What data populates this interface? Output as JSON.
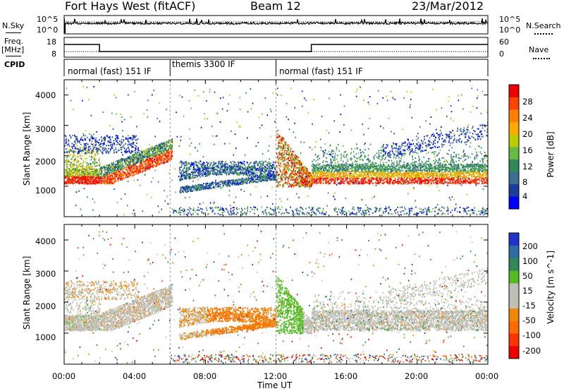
{
  "header": {
    "station": "Fort Hays West (fitACF)",
    "beam": "Beam 12",
    "date": "23/Mar/2012"
  },
  "left_labels": {
    "nsky": "N.Sky",
    "freq": "Freq.",
    "freq_unit": "[MHz]",
    "cpid": "CPID"
  },
  "right_labels": {
    "nsearch": "N.Search",
    "nave": "Nave"
  },
  "noise_axis": {
    "left_ticks": [
      "10^5",
      "10^0"
    ],
    "right_ticks": [
      "10^5",
      "10^0"
    ]
  },
  "freq_axis": {
    "left_ticks": [
      "18",
      "8"
    ],
    "right_ticks": [
      "60",
      "0"
    ]
  },
  "cpid_modes": [
    {
      "label": "normal (fast) 151 IF",
      "start": 0,
      "end": 6
    },
    {
      "label": "themis 3300 IF",
      "start": 6,
      "end": 12
    },
    {
      "label": "normal (fast) 151 IF",
      "start": 12,
      "end": 24
    }
  ],
  "colors": {
    "power_scale": [
      "#0000ff",
      "#1c3c9c",
      "#3a6f8f",
      "#2e8b57",
      "#66bb44",
      "#bbcc00",
      "#ffaa00",
      "#ff7f00",
      "#ff4400",
      "#ee0000"
    ],
    "velocity_scale": [
      "#2233cc",
      "#2e6da4",
      "#2e8b57",
      "#55bb22",
      "#bfbfb6",
      "#bfbfb6",
      "#ee8800",
      "#ff6a00",
      "#ff3300",
      "#ee0000"
    ]
  },
  "chart_data": [
    {
      "type": "heatmap",
      "quantity": "power",
      "ylabel": "Slant Range [km]",
      "y_ticks": [
        "4000",
        "3000",
        "2000",
        "1000"
      ],
      "ylim": [
        0,
        4500
      ],
      "xlim": [
        0,
        24
      ],
      "colorbar_label": "Power [dB]",
      "colorbar_ticks": [
        "28",
        "24",
        "20",
        "16",
        "12",
        "8",
        "4"
      ],
      "features": [
        {
          "x": [
            0,
            1.8
          ],
          "y": [
            1100,
            1500
          ],
          "level": "red"
        },
        {
          "x": [
            2,
            6
          ],
          "y": [
            1150,
            2300
          ],
          "level": "orange-green"
        },
        {
          "x": [
            6.5,
            12
          ],
          "y": [
            750,
            1800
          ],
          "level": "blue-green"
        },
        {
          "x": [
            12,
            14
          ],
          "y": [
            1000,
            2900
          ],
          "level": "red"
        },
        {
          "x": [
            14,
            24
          ],
          "y": [
            1100,
            1700
          ],
          "level": "red-green"
        }
      ]
    },
    {
      "type": "heatmap",
      "quantity": "velocity",
      "ylabel": "Slant Range [km]",
      "y_ticks": [
        "4000",
        "3000",
        "2000",
        "1000"
      ],
      "ylim": [
        0,
        4500
      ],
      "xlim": [
        0,
        24
      ],
      "colorbar_label": "Velocity [m s^-1]",
      "colorbar_ticks": [
        "200",
        "100",
        "50",
        "15",
        "-15",
        "-50",
        "-100",
        "-200"
      ],
      "features": [
        {
          "x": [
            0,
            6
          ],
          "y": [
            1100,
            2500
          ],
          "level": "grey"
        },
        {
          "x": [
            7.5,
            12
          ],
          "y": [
            750,
            1800
          ],
          "level": "orange"
        },
        {
          "x": [
            12,
            13.5
          ],
          "y": [
            1200,
            2900
          ],
          "level": "green"
        },
        {
          "x": [
            14,
            24
          ],
          "y": [
            1100,
            2500
          ],
          "level": "grey"
        }
      ]
    }
  ],
  "x_axis": {
    "label": "Time UT",
    "ticks": [
      "00:00",
      "04:00",
      "08:00",
      "12:00",
      "16:00",
      "20:00",
      "00:00"
    ]
  }
}
